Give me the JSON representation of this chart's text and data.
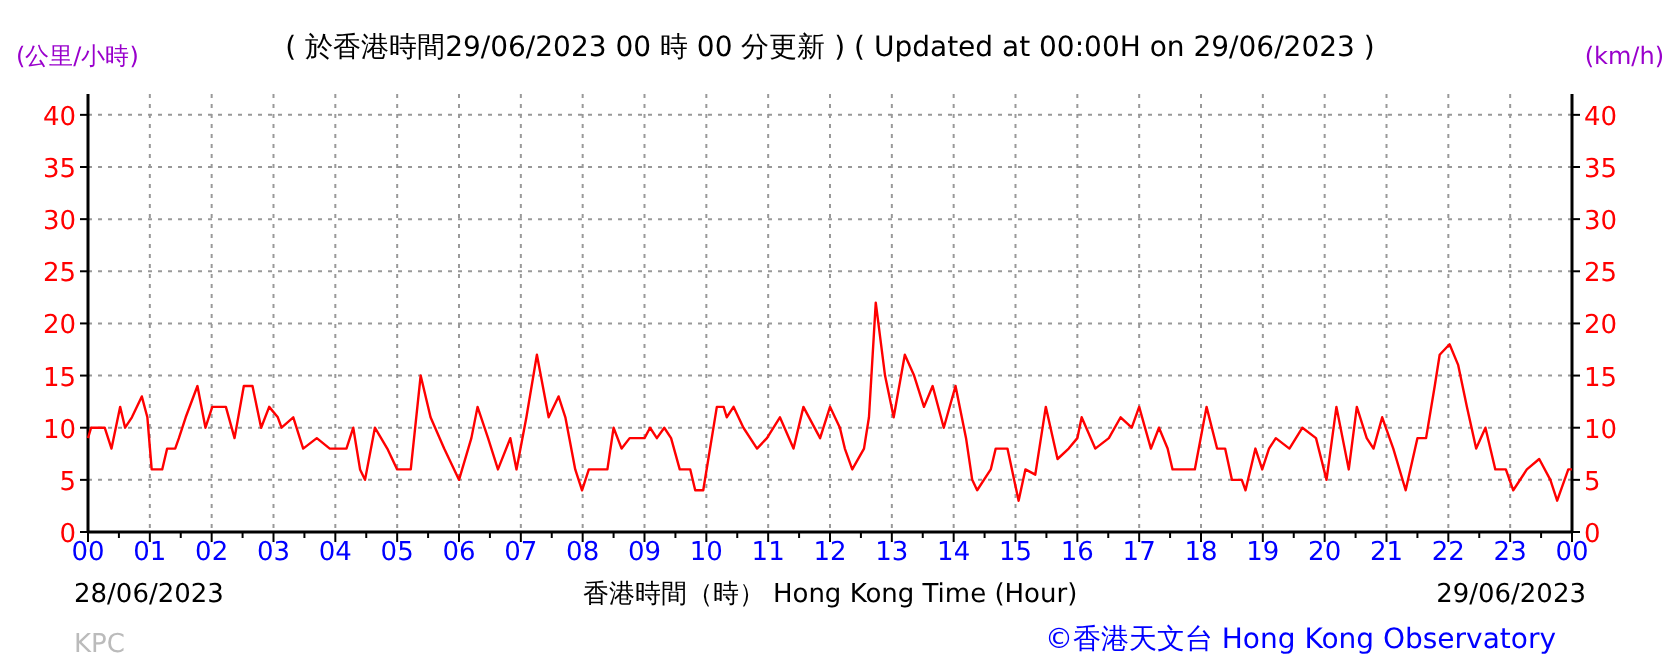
{
  "chart_data": {
    "type": "line",
    "title": "( 於香港時間29/06/2023 00 時 00 分更新 ) ( Updated at 00:00H on 29/06/2023 )",
    "xlabel": "香港時間（時） Hong Kong Time (Hour)",
    "ylabel": "(公里/小時)",
    "y2label": "(km/h)",
    "annotations": [
      "28/06/2023",
      "29/06/2023",
      "KPC",
      "©香港天文台 Hong Kong Observatory"
    ],
    "xlim": [
      0,
      24
    ],
    "xticks": [
      {
        "value": 0,
        "label": "00"
      },
      {
        "value": 1,
        "label": "01"
      },
      {
        "value": 2,
        "label": "02"
      },
      {
        "value": 3,
        "label": "03"
      },
      {
        "value": 4,
        "label": "04"
      },
      {
        "value": 5,
        "label": "05"
      },
      {
        "value": 6,
        "label": "06"
      },
      {
        "value": 7,
        "label": "07"
      },
      {
        "value": 8,
        "label": "08"
      },
      {
        "value": 9,
        "label": "09"
      },
      {
        "value": 10,
        "label": "10"
      },
      {
        "value": 11,
        "label": "11"
      },
      {
        "value": 12,
        "label": "12"
      },
      {
        "value": 13,
        "label": "13"
      },
      {
        "value": 14,
        "label": "14"
      },
      {
        "value": 15,
        "label": "15"
      },
      {
        "value": 16,
        "label": "16"
      },
      {
        "value": 17,
        "label": "17"
      },
      {
        "value": 18,
        "label": "18"
      },
      {
        "value": 19,
        "label": "19"
      },
      {
        "value": 20,
        "label": "20"
      },
      {
        "value": 21,
        "label": "21"
      },
      {
        "value": 22,
        "label": "22"
      },
      {
        "value": 23,
        "label": "23"
      },
      {
        "value": 24,
        "label": "00"
      }
    ],
    "ylim": [
      0,
      42
    ],
    "yticks": [
      0,
      5,
      10,
      15,
      20,
      25,
      30,
      35,
      40
    ],
    "y2lim": [
      0,
      42
    ],
    "y2ticks": [
      0,
      5,
      10,
      15,
      20,
      25,
      30,
      35,
      40
    ],
    "grid": true,
    "line_style": "solid",
    "series": [
      {
        "color": "#ff0000",
        "x": [
          0,
          0.05,
          0.27,
          0.38,
          0.52,
          0.6,
          0.71,
          0.87,
          0.96,
          1.03,
          1.2,
          1.28,
          1.41,
          1.47,
          1.58,
          1.77,
          1.9,
          2.01,
          2.23,
          2.37,
          2.52,
          2.66,
          2.8,
          2.93,
          3.07,
          3.13,
          3.32,
          3.48,
          3.7,
          3.91,
          4.18,
          4.29,
          4.4,
          4.48,
          4.64,
          4.84,
          5.0,
          5.22,
          5.38,
          5.54,
          5.76,
          6.0,
          6.2,
          6.3,
          6.47,
          6.63,
          6.83,
          6.93,
          7.09,
          7.26,
          7.45,
          7.61,
          7.72,
          7.88,
          7.99,
          8.1,
          8.4,
          8.5,
          8.63,
          8.76,
          9.0,
          9.09,
          9.2,
          9.32,
          9.43,
          9.57,
          9.74,
          9.82,
          9.95,
          10.17,
          10.28,
          10.33,
          10.44,
          10.6,
          10.82,
          10.98,
          11.19,
          11.41,
          11.57,
          11.84,
          12.0,
          12.16,
          12.24,
          12.36,
          12.55,
          12.63,
          12.74,
          12.89,
          13.03,
          13.21,
          13.36,
          13.52,
          13.66,
          13.84,
          14.03,
          14.2,
          14.3,
          14.38,
          14.6,
          14.68,
          14.87,
          15.05,
          15.16,
          15.32,
          15.49,
          15.68,
          15.86,
          16.0,
          16.07,
          16.29,
          16.51,
          16.7,
          16.88,
          17.0,
          17.19,
          17.32,
          17.46,
          17.54,
          17.9,
          18.09,
          18.26,
          18.39,
          18.5,
          18.66,
          18.72,
          18.88,
          18.99,
          19.1,
          19.21,
          19.43,
          19.64,
          19.86,
          20.03,
          20.19,
          20.39,
          20.52,
          20.68,
          20.79,
          20.93,
          21.11,
          21.31,
          21.5,
          21.64,
          21.78,
          21.86,
          22.02,
          22.16,
          22.3,
          22.45,
          22.6,
          22.76,
          22.93,
          23.05,
          23.27,
          23.47,
          23.65,
          23.76,
          23.94,
          24
        ],
        "values": [
          9,
          10,
          10,
          8,
          12,
          10,
          11,
          13,
          11,
          6,
          6,
          8,
          8,
          9,
          11,
          14,
          10,
          12,
          12,
          9,
          14,
          14,
          10,
          12,
          11,
          10,
          11,
          8,
          9,
          8,
          8,
          10,
          6,
          5,
          10,
          8,
          6,
          6,
          15,
          11,
          8,
          5,
          9,
          12,
          9,
          6,
          9,
          6,
          11,
          17,
          11,
          13,
          11,
          6,
          4,
          6,
          6,
          10,
          8,
          9,
          9,
          10,
          9,
          10,
          9,
          6,
          6,
          4,
          4,
          12,
          12,
          11,
          12,
          10,
          8,
          9,
          11,
          8,
          12,
          9,
          12,
          10,
          8,
          6,
          8,
          11,
          22,
          15,
          11,
          17,
          15,
          12,
          14,
          10,
          14,
          9,
          5,
          4,
          6,
          8,
          8,
          3,
          6,
          5.5,
          12,
          7,
          8,
          9,
          11,
          8,
          9,
          11,
          10,
          12,
          8,
          10,
          8,
          6,
          6,
          12,
          8,
          8,
          5,
          5,
          4,
          8,
          6,
          8,
          9,
          8,
          10,
          9,
          5,
          12,
          6,
          12,
          9,
          8,
          11,
          8,
          4,
          9,
          9,
          14,
          17,
          18,
          16,
          12,
          8,
          10,
          6,
          6,
          4,
          6,
          7,
          5,
          3,
          6,
          6
        ]
      }
    ]
  }
}
